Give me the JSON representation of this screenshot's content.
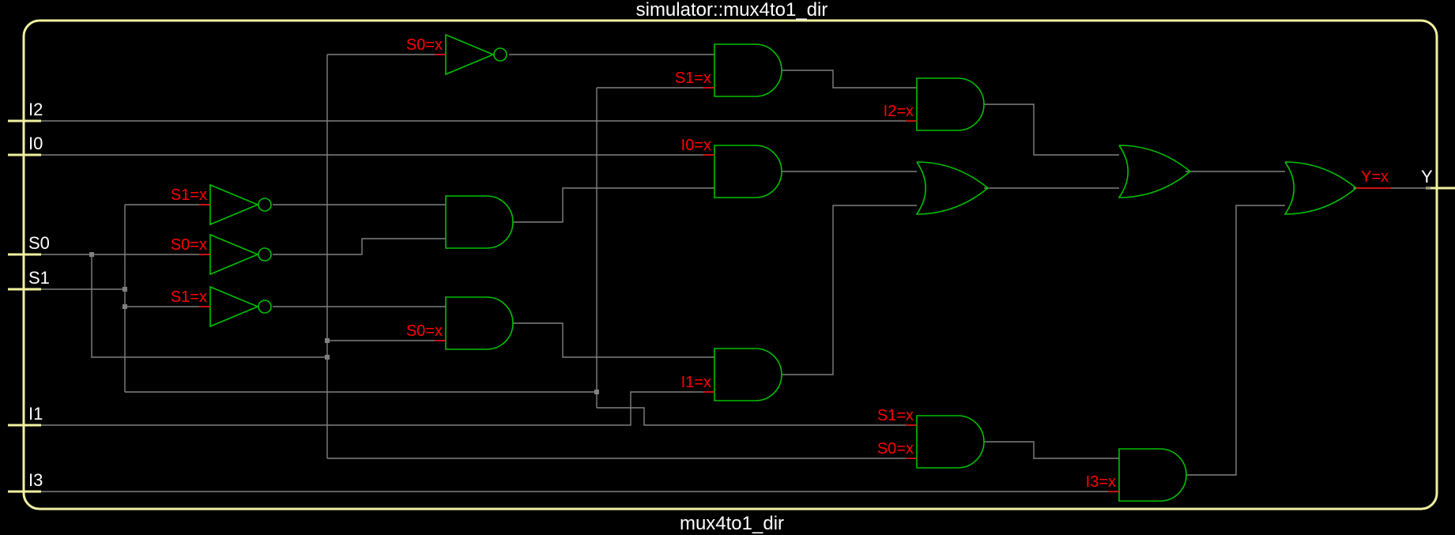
{
  "module_title": "simulator::mux4to1_dir",
  "module_name": "mux4to1_dir",
  "colors": {
    "background": "#000000",
    "frame": "#f0f0a0",
    "gate": "#00c000",
    "wire": "#808080",
    "value_label": "#ff0000",
    "port_label": "#ffffff"
  },
  "ports": {
    "inputs": [
      "I2",
      "I0",
      "S0",
      "S1",
      "I1",
      "I3"
    ],
    "output": "Y"
  },
  "gates": [
    {
      "id": "not_s0_top",
      "type": "NOT",
      "input_labels": [
        "S0=x"
      ]
    },
    {
      "id": "not_s1_a",
      "type": "NOT",
      "input_labels": [
        "S1=x"
      ]
    },
    {
      "id": "not_s0_b",
      "type": "NOT",
      "input_labels": [
        "S0=x"
      ]
    },
    {
      "id": "not_s1_c",
      "type": "NOT",
      "input_labels": [
        "S1=x"
      ]
    },
    {
      "id": "and_sel00",
      "type": "AND",
      "input_labels": []
    },
    {
      "id": "and_sel01",
      "type": "AND",
      "input_labels": [
        "S0=x"
      ]
    },
    {
      "id": "and_sel10",
      "type": "AND",
      "input_labels": [
        "S1=x"
      ]
    },
    {
      "id": "and_i0",
      "type": "AND",
      "input_labels": [
        "I0=x"
      ]
    },
    {
      "id": "and_i1",
      "type": "AND",
      "input_labels": [
        "I1=x"
      ]
    },
    {
      "id": "and_i2",
      "type": "AND",
      "input_labels": [
        "I2=x"
      ]
    },
    {
      "id": "and_sel11",
      "type": "AND",
      "input_labels": [
        "S1=x",
        "S0=x"
      ]
    },
    {
      "id": "and_i3",
      "type": "AND",
      "input_labels": [
        "I3=x"
      ]
    },
    {
      "id": "or_a",
      "type": "OR",
      "input_labels": []
    },
    {
      "id": "or_b",
      "type": "OR",
      "input_labels": []
    },
    {
      "id": "or_out",
      "type": "OR",
      "output_label": "Y=x"
    }
  ]
}
